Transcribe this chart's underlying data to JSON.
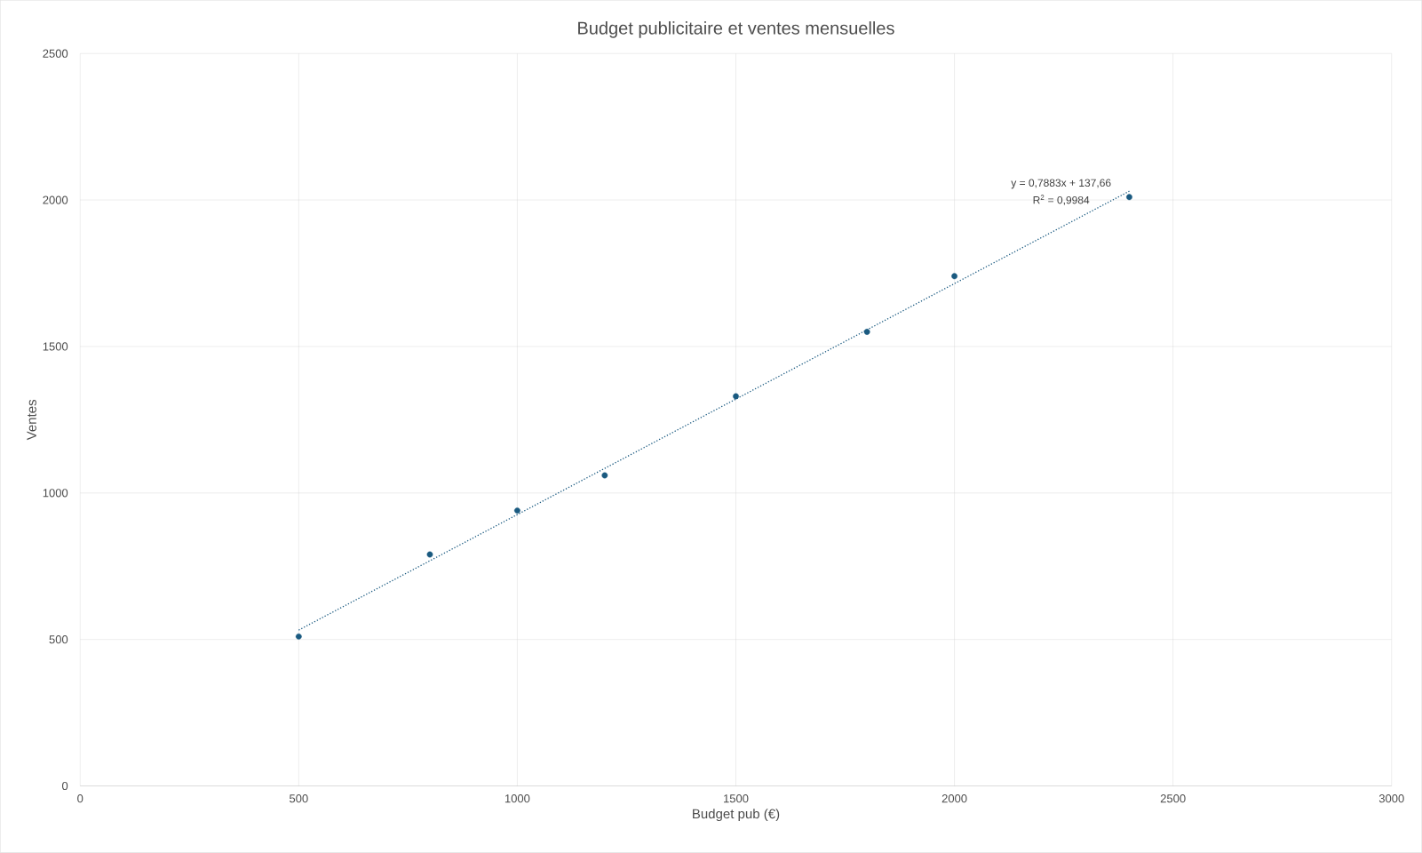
{
  "chart_data": {
    "type": "scatter",
    "title": "Budget publicitaire et ventes mensuelles",
    "xlabel": "Budget pub (€)",
    "ylabel": "Ventes",
    "xlim": [
      0,
      3000
    ],
    "xticks": [
      0,
      500,
      1000,
      1500,
      2000,
      2500,
      3000
    ],
    "ylim": [
      0,
      2500
    ],
    "yticks": [
      0,
      500,
      1000,
      1500,
      2000,
      2500
    ],
    "grid": true,
    "series": [
      {
        "marker": "circle",
        "color": "#1a5a80",
        "x": [
          500,
          800,
          1000,
          1200,
          1500,
          1800,
          2000,
          2400
        ],
        "values": [
          510,
          790,
          940,
          1060,
          1330,
          1550,
          1740,
          2010
        ]
      },
      {
        "type": "line",
        "line_style": "dotted",
        "color": "#1a5a80",
        "x": [
          500,
          2400
        ],
        "values": [
          532,
          2030
        ]
      }
    ],
    "annotations": [
      "y = 0,7883x + 137,66",
      "R$^{2}$ = 0,9984"
    ]
  }
}
